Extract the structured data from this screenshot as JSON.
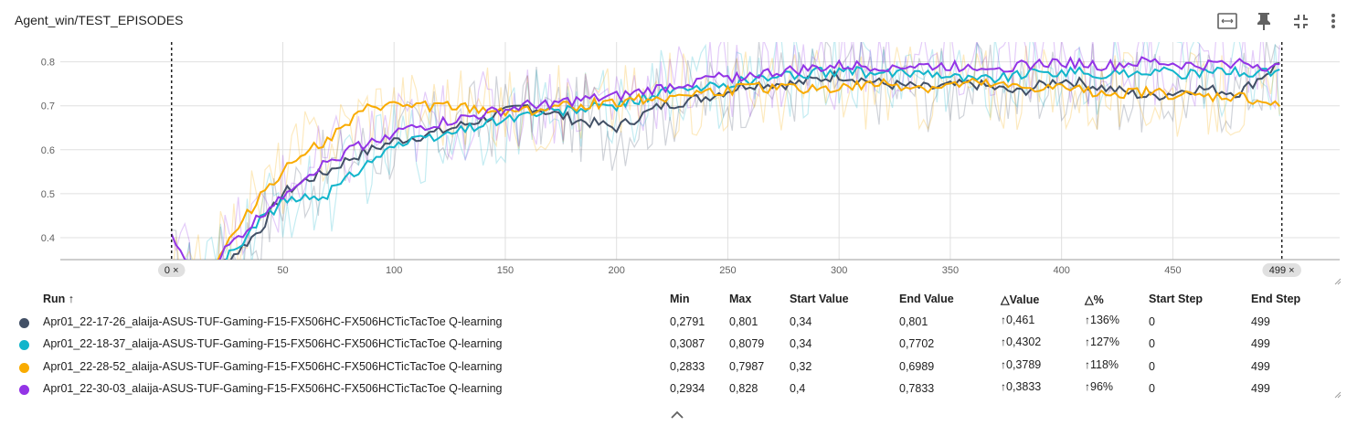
{
  "card": {
    "title": "Agent_win/TEST_EPISODES"
  },
  "toolbar": {
    "icons": [
      "fit-domain-icon",
      "pin-icon",
      "collapse-icon",
      "more-vert-icon"
    ]
  },
  "colors": {
    "run1": "#425066",
    "run2": "#12b5cb",
    "run3": "#f9ab00",
    "run4": "#9334e6",
    "grid": "#e0e0e0",
    "axis": "#9e9e9e",
    "tick_text": "#616161"
  },
  "chart_data": {
    "type": "line",
    "xlim": [
      -50,
      525
    ],
    "ylim": [
      0.35,
      0.845
    ],
    "x_ticks": [
      50,
      100,
      150,
      200,
      250,
      300,
      350,
      400,
      450
    ],
    "y_ticks": [
      0.4,
      0.5,
      0.6,
      0.7,
      0.8
    ],
    "y_tick_labels": [
      "0.4",
      "0.5",
      "0.6",
      "0.7",
      "0.8"
    ],
    "grid": true,
    "range_markers": [
      {
        "step": 0,
        "label": "0 ×"
      },
      {
        "step": 499,
        "label": "499 ×"
      }
    ],
    "smoothed_with_raw_background": true,
    "series": [
      {
        "name": "Apr01_22-17-26_alaija-ASUS-TUF-Gaming-F15-FX506HC-FX506HCTicTacToe Q-learning",
        "x": [
          0,
          10,
          20,
          30,
          40,
          50,
          60,
          70,
          80,
          90,
          100,
          120,
          140,
          160,
          180,
          200,
          220,
          240,
          260,
          280,
          300,
          320,
          340,
          360,
          380,
          400,
          420,
          440,
          460,
          480,
          499
        ],
        "y": [
          0.34,
          0.3,
          0.33,
          0.37,
          0.42,
          0.5,
          0.53,
          0.55,
          0.58,
          0.6,
          0.62,
          0.64,
          0.67,
          0.7,
          0.67,
          0.65,
          0.7,
          0.72,
          0.75,
          0.75,
          0.77,
          0.75,
          0.74,
          0.75,
          0.73,
          0.76,
          0.74,
          0.72,
          0.74,
          0.73,
          0.801
        ]
      },
      {
        "name": "Apr01_22-18-37_alaija-ASUS-TUF-Gaming-F15-FX506HC-FX506HCTicTacToe Q-learning",
        "x": [
          0,
          10,
          20,
          30,
          40,
          50,
          60,
          70,
          80,
          90,
          100,
          120,
          140,
          160,
          180,
          200,
          220,
          240,
          260,
          280,
          300,
          320,
          340,
          360,
          380,
          400,
          420,
          440,
          460,
          480,
          499
        ],
        "y": [
          0.34,
          0.31,
          0.33,
          0.38,
          0.44,
          0.48,
          0.49,
          0.5,
          0.54,
          0.58,
          0.61,
          0.63,
          0.66,
          0.68,
          0.69,
          0.7,
          0.73,
          0.74,
          0.76,
          0.77,
          0.78,
          0.77,
          0.78,
          0.76,
          0.77,
          0.78,
          0.77,
          0.78,
          0.77,
          0.78,
          0.7702
        ]
      },
      {
        "name": "Apr01_22-28-52_alaija-ASUS-TUF-Gaming-F15-FX506HC-FX506HCTicTacToe Q-learning",
        "x": [
          0,
          10,
          20,
          30,
          40,
          50,
          60,
          70,
          80,
          90,
          100,
          120,
          140,
          160,
          180,
          200,
          220,
          240,
          260,
          280,
          300,
          320,
          340,
          360,
          380,
          400,
          420,
          440,
          460,
          480,
          499
        ],
        "y": [
          0.32,
          0.3,
          0.35,
          0.42,
          0.5,
          0.55,
          0.6,
          0.62,
          0.66,
          0.7,
          0.7,
          0.7,
          0.69,
          0.69,
          0.7,
          0.71,
          0.72,
          0.73,
          0.74,
          0.74,
          0.74,
          0.75,
          0.74,
          0.75,
          0.74,
          0.74,
          0.73,
          0.73,
          0.72,
          0.72,
          0.6989
        ]
      },
      {
        "name": "Apr01_22-30-03_alaija-ASUS-TUF-Gaming-F15-FX506HC-FX506HCTicTacToe Q-learning",
        "x": [
          0,
          10,
          20,
          30,
          40,
          50,
          60,
          70,
          80,
          90,
          100,
          120,
          140,
          160,
          180,
          200,
          220,
          240,
          260,
          280,
          300,
          320,
          340,
          360,
          380,
          400,
          420,
          440,
          460,
          480,
          499
        ],
        "y": [
          0.4,
          0.32,
          0.35,
          0.4,
          0.45,
          0.5,
          0.54,
          0.57,
          0.6,
          0.62,
          0.64,
          0.66,
          0.68,
          0.7,
          0.71,
          0.72,
          0.74,
          0.76,
          0.77,
          0.78,
          0.79,
          0.79,
          0.79,
          0.79,
          0.79,
          0.8,
          0.79,
          0.8,
          0.79,
          0.8,
          0.7833
        ]
      }
    ]
  },
  "table": {
    "headers": {
      "run": "Run ↑",
      "min": "Min",
      "max": "Max",
      "start_value": "Start Value",
      "end_value": "End Value",
      "delta_value": "Value",
      "delta_pct": "%",
      "start_step": "Start Step",
      "end_step": "End Step"
    },
    "rows": [
      {
        "run": "Apr01_22-17-26_alaija-ASUS-TUF-Gaming-F15-FX506HC-FX506HCTicTacToe Q-learning",
        "min": "0,2791",
        "max": "0,801",
        "start_value": "0,34",
        "end_value": "0,801",
        "delta_value": "0,461",
        "delta_pct": "136%",
        "start_step": "0",
        "end_step": "499",
        "color": "#425066"
      },
      {
        "run": "Apr01_22-18-37_alaija-ASUS-TUF-Gaming-F15-FX506HC-FX506HCTicTacToe Q-learning",
        "min": "0,3087",
        "max": "0,8079",
        "start_value": "0,34",
        "end_value": "0,7702",
        "delta_value": "0,4302",
        "delta_pct": "127%",
        "start_step": "0",
        "end_step": "499",
        "color": "#12b5cb"
      },
      {
        "run": "Apr01_22-28-52_alaija-ASUS-TUF-Gaming-F15-FX506HC-FX506HCTicTacToe Q-learning",
        "min": "0,2833",
        "max": "0,7987",
        "start_value": "0,32",
        "end_value": "0,6989",
        "delta_value": "0,3789",
        "delta_pct": "118%",
        "start_step": "0",
        "end_step": "499",
        "color": "#f9ab00"
      },
      {
        "run": "Apr01_22-30-03_alaija-ASUS-TUF-Gaming-F15-FX506HC-FX506HCTicTacToe Q-learning",
        "min": "0,2934",
        "max": "0,828",
        "start_value": "0,4",
        "end_value": "0,7833",
        "delta_value": "0,3833",
        "delta_pct": "96%",
        "start_step": "0",
        "end_step": "499",
        "color": "#9334e6"
      }
    ]
  }
}
